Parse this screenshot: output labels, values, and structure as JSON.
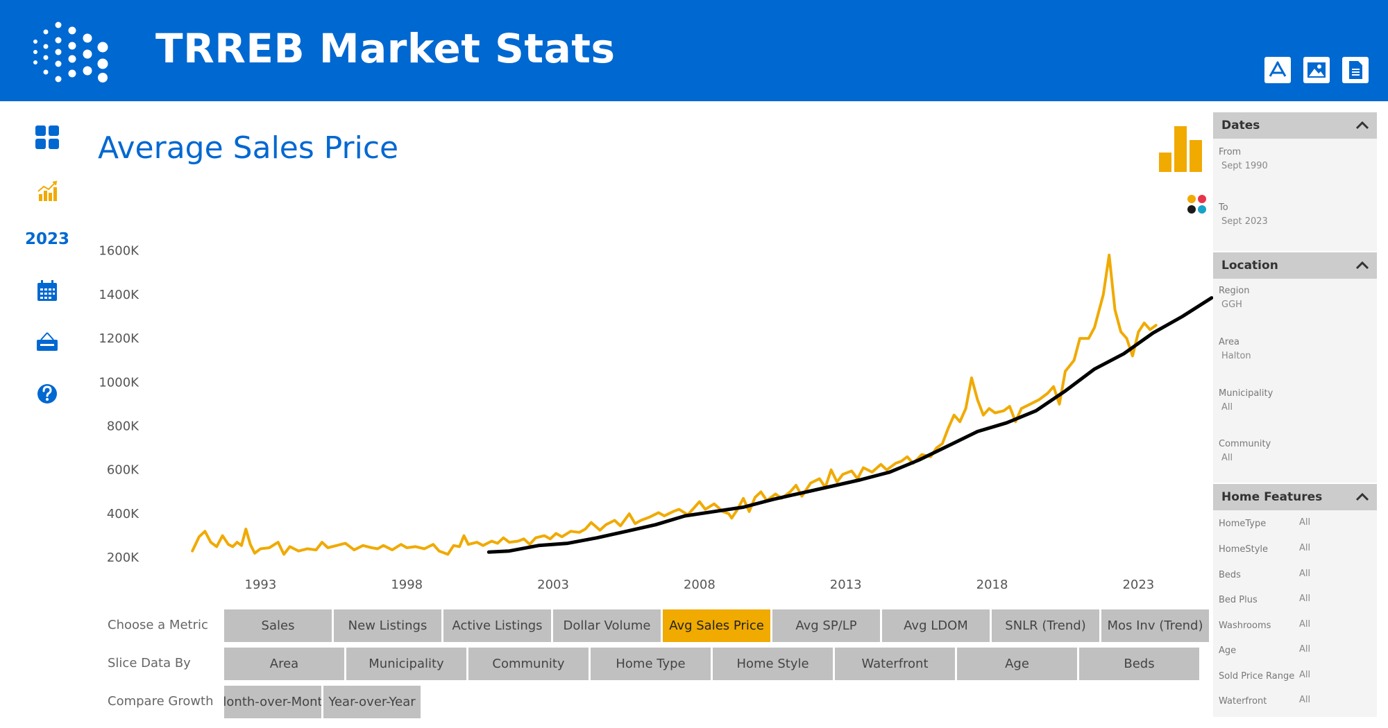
{
  "header": {
    "title": "TRREB Market Stats",
    "background": "#0068D1",
    "buttons": [
      {
        "icon": "pdf-icon"
      },
      {
        "icon": "image-icon"
      },
      {
        "icon": "document-icon"
      }
    ]
  },
  "nav": {
    "items": [
      {
        "icon": "dashboard-icon"
      },
      {
        "icon": "chart-icon"
      },
      {
        "label": "2023"
      },
      {
        "icon": "calendar-icon"
      },
      {
        "icon": "new-sign-icon"
      },
      {
        "icon": "help-icon"
      }
    ]
  },
  "page_title": "Average Sales Price",
  "chart_data": {
    "type": "line",
    "x_ticks": [
      "1993",
      "1998",
      "2003",
      "2008",
      "2013",
      "2018",
      "2023"
    ],
    "y_ticks": [
      "200K",
      "400K",
      "600K",
      "800K",
      "1000K",
      "1200K",
      "1400K",
      "1600K"
    ],
    "ylim": [
      150,
      1700
    ],
    "grid": false,
    "series": [
      {
        "color": "#F0AA00",
        "points": [
          [
            1990.67,
            230
          ],
          [
            1990.9,
            295
          ],
          [
            1991.1,
            320
          ],
          [
            1991.3,
            270
          ],
          [
            1991.5,
            250
          ],
          [
            1991.7,
            300
          ],
          [
            1991.9,
            260
          ],
          [
            1992.05,
            250
          ],
          [
            1992.2,
            270
          ],
          [
            1992.35,
            255
          ],
          [
            1992.5,
            330
          ],
          [
            1992.65,
            260
          ],
          [
            1992.8,
            220
          ],
          [
            1993.0,
            240
          ],
          [
            1993.3,
            245
          ],
          [
            1993.6,
            270
          ],
          [
            1993.8,
            215
          ],
          [
            1994.0,
            250
          ],
          [
            1994.3,
            230
          ],
          [
            1994.6,
            240
          ],
          [
            1994.9,
            235
          ],
          [
            1995.1,
            270
          ],
          [
            1995.3,
            245
          ],
          [
            1995.6,
            255
          ],
          [
            1995.9,
            265
          ],
          [
            1996.2,
            235
          ],
          [
            1996.5,
            255
          ],
          [
            1996.8,
            245
          ],
          [
            1997.0,
            240
          ],
          [
            1997.2,
            255
          ],
          [
            1997.5,
            235
          ],
          [
            1997.8,
            260
          ],
          [
            1998.0,
            245
          ],
          [
            1998.3,
            250
          ],
          [
            1998.6,
            240
          ],
          [
            1998.9,
            260
          ],
          [
            1999.1,
            230
          ],
          [
            1999.4,
            215
          ],
          [
            1999.6,
            255
          ],
          [
            1999.8,
            250
          ],
          [
            1999.95,
            300
          ],
          [
            2000.1,
            260
          ],
          [
            2000.4,
            270
          ],
          [
            2000.6,
            255
          ],
          [
            2000.9,
            275
          ],
          [
            2001.1,
            265
          ],
          [
            2001.3,
            290
          ],
          [
            2001.5,
            270
          ],
          [
            2001.8,
            275
          ],
          [
            2002.0,
            285
          ],
          [
            2002.2,
            260
          ],
          [
            2002.4,
            290
          ],
          [
            2002.7,
            300
          ],
          [
            2002.9,
            285
          ],
          [
            2003.1,
            310
          ],
          [
            2003.3,
            295
          ],
          [
            2003.6,
            320
          ],
          [
            2003.9,
            315
          ],
          [
            2004.1,
            330
          ],
          [
            2004.3,
            360
          ],
          [
            2004.6,
            325
          ],
          [
            2004.8,
            350
          ],
          [
            2005.1,
            370
          ],
          [
            2005.3,
            345
          ],
          [
            2005.6,
            400
          ],
          [
            2005.8,
            355
          ],
          [
            2006.0,
            370
          ],
          [
            2006.3,
            385
          ],
          [
            2006.6,
            405
          ],
          [
            2006.8,
            390
          ],
          [
            2007.1,
            410
          ],
          [
            2007.3,
            420
          ],
          [
            2007.6,
            395
          ],
          [
            2007.8,
            425
          ],
          [
            2008.0,
            455
          ],
          [
            2008.2,
            420
          ],
          [
            2008.5,
            445
          ],
          [
            2008.8,
            410
          ],
          [
            2009.0,
            400
          ],
          [
            2009.1,
            380
          ],
          [
            2009.3,
            420
          ],
          [
            2009.5,
            470
          ],
          [
            2009.7,
            410
          ],
          [
            2009.9,
            475
          ],
          [
            2010.1,
            500
          ],
          [
            2010.3,
            460
          ],
          [
            2010.6,
            490
          ],
          [
            2010.8,
            470
          ],
          [
            2011.1,
            500
          ],
          [
            2011.3,
            530
          ],
          [
            2011.5,
            480
          ],
          [
            2011.8,
            540
          ],
          [
            2012.1,
            560
          ],
          [
            2012.3,
            520
          ],
          [
            2012.5,
            600
          ],
          [
            2012.7,
            545
          ],
          [
            2012.9,
            580
          ],
          [
            2013.2,
            595
          ],
          [
            2013.4,
            560
          ],
          [
            2013.6,
            610
          ],
          [
            2013.9,
            590
          ],
          [
            2014.2,
            625
          ],
          [
            2014.4,
            600
          ],
          [
            2014.7,
            630
          ],
          [
            2014.9,
            640
          ],
          [
            2015.1,
            660
          ],
          [
            2015.3,
            630
          ],
          [
            2015.6,
            670
          ],
          [
            2015.9,
            660
          ],
          [
            2016.1,
            700
          ],
          [
            2016.3,
            720
          ],
          [
            2016.5,
            790
          ],
          [
            2016.7,
            850
          ],
          [
            2016.9,
            820
          ],
          [
            2017.1,
            880
          ],
          [
            2017.3,
            1020
          ],
          [
            2017.5,
            920
          ],
          [
            2017.7,
            850
          ],
          [
            2017.9,
            880
          ],
          [
            2018.1,
            860
          ],
          [
            2018.4,
            870
          ],
          [
            2018.6,
            890
          ],
          [
            2018.8,
            820
          ],
          [
            2019.0,
            880
          ],
          [
            2019.3,
            900
          ],
          [
            2019.6,
            920
          ],
          [
            2019.9,
            950
          ],
          [
            2020.1,
            980
          ],
          [
            2020.3,
            900
          ],
          [
            2020.5,
            1050
          ],
          [
            2020.8,
            1100
          ],
          [
            2021.0,
            1200
          ],
          [
            2021.3,
            1200
          ],
          [
            2021.5,
            1250
          ],
          [
            2021.8,
            1400
          ],
          [
            2022.0,
            1580
          ],
          [
            2022.2,
            1330
          ],
          [
            2022.4,
            1230
          ],
          [
            2022.6,
            1200
          ],
          [
            2022.8,
            1120
          ],
          [
            2023.0,
            1230
          ],
          [
            2023.2,
            1270
          ],
          [
            2023.4,
            1240
          ],
          [
            2023.6,
            1260
          ]
        ]
      },
      {
        "color": "#000000",
        "points": [
          [
            2000.8,
            225
          ],
          [
            2001.5,
            230
          ],
          [
            2002.5,
            255
          ],
          [
            2003.5,
            265
          ],
          [
            2004.5,
            290
          ],
          [
            2005.5,
            320
          ],
          [
            2006.5,
            350
          ],
          [
            2007.5,
            390
          ],
          [
            2008.5,
            410
          ],
          [
            2009.5,
            430
          ],
          [
            2010.5,
            465
          ],
          [
            2011.5,
            495
          ],
          [
            2012.5,
            525
          ],
          [
            2013.5,
            555
          ],
          [
            2014.5,
            590
          ],
          [
            2015.5,
            645
          ],
          [
            2016.5,
            710
          ],
          [
            2017.5,
            775
          ],
          [
            2018.5,
            815
          ],
          [
            2019.5,
            870
          ],
          [
            2020.5,
            960
          ],
          [
            2021.5,
            1060
          ],
          [
            2022.5,
            1130
          ],
          [
            2023.5,
            1225
          ],
          [
            2024.5,
            1300
          ],
          [
            2025.5,
            1385
          ]
        ]
      }
    ]
  },
  "controls": {
    "metric": {
      "label": "Choose a Metric",
      "options": [
        "Sales",
        "New Listings",
        "Active Listings",
        "Dollar Volume",
        "Avg Sales Price",
        "Avg SP/LP",
        "Avg LDOM",
        "SNLR (Trend)",
        "Mos Inv (Trend)"
      ],
      "active_index": 4
    },
    "slice": {
      "label": "Slice Data By",
      "options": [
        "Area",
        "Municipality",
        "Community",
        "Home Type",
        "Home Style",
        "Waterfront",
        "Age",
        "Beds"
      ]
    },
    "growth": {
      "label": "Compare Growth",
      "options": [
        "lonth-over-Mont",
        "Year-over-Year"
      ]
    }
  },
  "colors": {
    "accent": "#F0AA00",
    "brand_blue": "#0068D1",
    "pill_bg": "#C0C0C0",
    "trend_line": "#000000"
  },
  "filters": {
    "dates": {
      "title": "Dates",
      "fields": [
        {
          "label": "From",
          "value": "Sept 1990"
        },
        {
          "label": "To",
          "value": "Sept 2023"
        }
      ]
    },
    "location": {
      "title": "Location",
      "fields": [
        {
          "label": "Region",
          "value": "GGH"
        },
        {
          "label": "Area",
          "value": "Halton"
        },
        {
          "label": "Municipality",
          "value": "All"
        },
        {
          "label": "Community",
          "value": "All"
        }
      ]
    },
    "home_features": {
      "title": "Home Features",
      "fields": [
        {
          "label": "HomeType",
          "value": "All"
        },
        {
          "label": "HomeStyle",
          "value": "All"
        },
        {
          "label": "Beds",
          "value": "All"
        },
        {
          "label": "Bed Plus",
          "value": "All"
        },
        {
          "label": "Washrooms",
          "value": "All"
        },
        {
          "label": "Age",
          "value": "All"
        },
        {
          "label": "Sold Price Range",
          "value": "All"
        },
        {
          "label": "Waterfront",
          "value": "All"
        }
      ]
    }
  }
}
